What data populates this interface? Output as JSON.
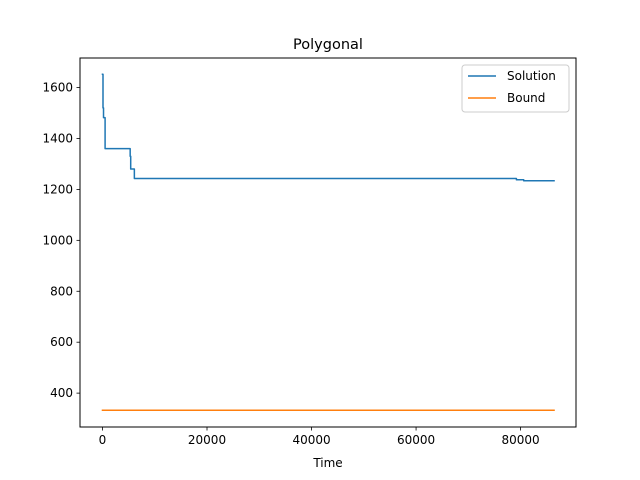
{
  "chart_data": {
    "type": "line",
    "title": "Polygonal",
    "xlabel": "Time",
    "ylabel": "",
    "xlim": [
      -4300,
      90600
    ],
    "ylim": [
      267,
      1716
    ],
    "xticks": [
      0,
      20000,
      40000,
      60000,
      80000
    ],
    "yticks": [
      400,
      600,
      800,
      1000,
      1200,
      1400,
      1600
    ],
    "grid": false,
    "legend_position": "top-right",
    "series": [
      {
        "name": "Solution",
        "color": "#1f77b4",
        "step": true,
        "x": [
          0,
          100,
          200,
          300,
          500,
          5300,
          5400,
          5900,
          6100,
          78800,
          79200,
          80400,
          80600,
          86400
        ],
        "y": [
          1652,
          1520,
          1482,
          1482,
          1360,
          1330,
          1280,
          1280,
          1243,
          1243,
          1238,
          1238,
          1234,
          1234
        ]
      },
      {
        "name": "Bound",
        "color": "#ff7f0e",
        "step": false,
        "x": [
          0,
          86400
        ],
        "y": [
          333,
          333
        ]
      }
    ]
  }
}
